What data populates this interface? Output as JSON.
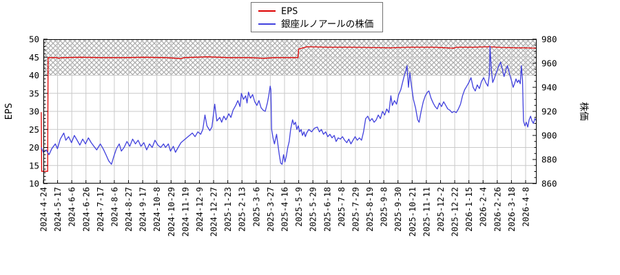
{
  "legend": {
    "items": [
      {
        "label": "EPS",
        "color": "#dd0000"
      },
      {
        "label": "銀座ルノアールの株価",
        "color": "#4040dd"
      }
    ]
  },
  "colors": {
    "grid": "#c9c9c9",
    "hatch": "#ababab",
    "border": "#000000",
    "background": "#ffffff",
    "eps_line": "#dd0000",
    "price_line": "#4040dd"
  },
  "chart_data": {
    "type": "line",
    "title": "",
    "x_unit": "date tick index (1 step = 3 weeks of trading days)",
    "x_tick_labels": [
      "2024-4-24",
      "2024-5-17",
      "2024-6-6",
      "2024-6-26",
      "2024-7-17",
      "2024-8-6",
      "2024-8-27",
      "2024-9-17",
      "2024-10-8",
      "2024-10-29",
      "2024-11-19",
      "2024-12-9",
      "2024-12-27",
      "2025-1-23",
      "2025-2-13",
      "2025-3-6",
      "2025-3-27",
      "2025-4-16",
      "2025-5-9",
      "2025-5-29",
      "2025-6-18",
      "2025-7-8",
      "2025-7-29",
      "2025-8-19",
      "2025-9-8",
      "2025-9-30",
      "2025-10-21",
      "2025-11-11",
      "2025-12-2",
      "2025-12-22",
      "2026-1-15",
      "2026-2-4",
      "2026-2-26",
      "2026-3-18",
      "2026-4-8"
    ],
    "x_range": [
      -0.15,
      34.77
    ],
    "grid": true,
    "shaded_band": {
      "axis": "left",
      "from": 40,
      "to": 50,
      "style": "crosshatch"
    },
    "axes": {
      "left": {
        "title": "EPS",
        "min": 10,
        "max": 50,
        "major_step": 5,
        "minor_step": 1
      },
      "right": {
        "title": "株価",
        "min": 860,
        "max": 980,
        "major_step": 20,
        "minor_step": 5
      }
    },
    "series": [
      {
        "name": "EPS",
        "axis": "left",
        "color": "#dd0000",
        "points": [
          [
            -0.15,
            29.8
          ],
          [
            -0.12,
            13.4
          ],
          [
            0.3,
            13.4
          ],
          [
            0.33,
            44.9
          ],
          [
            0.94,
            44.9
          ],
          [
            1.09,
            44.7
          ],
          [
            1.29,
            44.9
          ],
          [
            2.67,
            45.0
          ],
          [
            4.16,
            44.9
          ],
          [
            5.64,
            44.9
          ],
          [
            7.13,
            45.0
          ],
          [
            8.61,
            44.9
          ],
          [
            9.41,
            44.7
          ],
          [
            9.7,
            44.6
          ],
          [
            9.9,
            44.9
          ],
          [
            11.58,
            45.1
          ],
          [
            13.07,
            44.9
          ],
          [
            14.55,
            44.9
          ],
          [
            15.54,
            44.7
          ],
          [
            16.29,
            44.9
          ],
          [
            17.28,
            44.9
          ],
          [
            17.95,
            44.9
          ],
          [
            18.0,
            47.3
          ],
          [
            18.61,
            47.9
          ],
          [
            20,
            47.8
          ],
          [
            21.49,
            47.8
          ],
          [
            22.97,
            47.7
          ],
          [
            24.46,
            47.6
          ],
          [
            25.94,
            47.8
          ],
          [
            27.43,
            47.8
          ],
          [
            28.91,
            47.5
          ],
          [
            29.16,
            47.8
          ],
          [
            30.4,
            47.8
          ],
          [
            31.39,
            47.9
          ],
          [
            32.38,
            47.7
          ],
          [
            33.37,
            47.6
          ],
          [
            33.96,
            47.6
          ],
          [
            34.77,
            47.5
          ]
        ]
      },
      {
        "name": "銀座ルノアールの株価",
        "axis": "right",
        "color": "#4040dd",
        "points": [
          [
            -0.15,
            890
          ],
          [
            0,
            886
          ],
          [
            0.2,
            888
          ],
          [
            0.4,
            884
          ],
          [
            0.59,
            889
          ],
          [
            0.84,
            893
          ],
          [
            0.99,
            889
          ],
          [
            1.19,
            897
          ],
          [
            1.44,
            902
          ],
          [
            1.58,
            896
          ],
          [
            1.78,
            899
          ],
          [
            1.98,
            894
          ],
          [
            2.18,
            900
          ],
          [
            2.38,
            896
          ],
          [
            2.57,
            892
          ],
          [
            2.77,
            897
          ],
          [
            2.97,
            893
          ],
          [
            3.17,
            898
          ],
          [
            3.37,
            894
          ],
          [
            3.56,
            891
          ],
          [
            3.76,
            888
          ],
          [
            4.01,
            893
          ],
          [
            4.21,
            889
          ],
          [
            4.41,
            884
          ],
          [
            4.6,
            879
          ],
          [
            4.8,
            876
          ],
          [
            4.95,
            882
          ],
          [
            5.15,
            889
          ],
          [
            5.35,
            893
          ],
          [
            5.5,
            887
          ],
          [
            5.69,
            890
          ],
          [
            5.89,
            895
          ],
          [
            6.09,
            891
          ],
          [
            6.29,
            897
          ],
          [
            6.49,
            893
          ],
          [
            6.68,
            896
          ],
          [
            6.88,
            891
          ],
          [
            7.08,
            894
          ],
          [
            7.28,
            888
          ],
          [
            7.48,
            893
          ],
          [
            7.67,
            890
          ],
          [
            7.87,
            896
          ],
          [
            8.07,
            892
          ],
          [
            8.27,
            890
          ],
          [
            8.47,
            893
          ],
          [
            8.61,
            890
          ],
          [
            8.81,
            893
          ],
          [
            8.96,
            887
          ],
          [
            9.16,
            891
          ],
          [
            9.31,
            886
          ],
          [
            9.5,
            890
          ],
          [
            9.7,
            894
          ],
          [
            9.9,
            896
          ],
          [
            10.1,
            898
          ],
          [
            10.3,
            900
          ],
          [
            10.5,
            902
          ],
          [
            10.69,
            899
          ],
          [
            10.89,
            903
          ],
          [
            11.09,
            901
          ],
          [
            11.24,
            905
          ],
          [
            11.39,
            917
          ],
          [
            11.53,
            908
          ],
          [
            11.73,
            904
          ],
          [
            11.88,
            907
          ],
          [
            12.08,
            926
          ],
          [
            12.23,
            912
          ],
          [
            12.43,
            915
          ],
          [
            12.57,
            911
          ],
          [
            12.72,
            916
          ],
          [
            12.87,
            913
          ],
          [
            13.07,
            918
          ],
          [
            13.22,
            915
          ],
          [
            13.37,
            921
          ],
          [
            13.56,
            925
          ],
          [
            13.71,
            929
          ],
          [
            13.86,
            924
          ],
          [
            13.96,
            935
          ],
          [
            14.11,
            930
          ],
          [
            14.26,
            933
          ],
          [
            14.36,
            927
          ],
          [
            14.46,
            936
          ],
          [
            14.6,
            931
          ],
          [
            14.75,
            934
          ],
          [
            14.9,
            928
          ],
          [
            15.05,
            925
          ],
          [
            15.2,
            929
          ],
          [
            15.35,
            923
          ],
          [
            15.5,
            921
          ],
          [
            15.64,
            920
          ],
          [
            15.79,
            927
          ],
          [
            15.89,
            933
          ],
          [
            15.99,
            941
          ],
          [
            16.04,
            938
          ],
          [
            16.09,
            905
          ],
          [
            16.19,
            898
          ],
          [
            16.29,
            893
          ],
          [
            16.44,
            901
          ],
          [
            16.53,
            893
          ],
          [
            16.63,
            884
          ],
          [
            16.73,
            877
          ],
          [
            16.83,
            876
          ],
          [
            16.93,
            884
          ],
          [
            17.03,
            878
          ],
          [
            17.13,
            883
          ],
          [
            17.23,
            890
          ],
          [
            17.33,
            895
          ],
          [
            17.43,
            905
          ],
          [
            17.57,
            913
          ],
          [
            17.67,
            909
          ],
          [
            17.77,
            911
          ],
          [
            17.87,
            905
          ],
          [
            17.97,
            908
          ],
          [
            18.07,
            903
          ],
          [
            18.17,
            905
          ],
          [
            18.27,
            900
          ],
          [
            18.37,
            903
          ],
          [
            18.47,
            899
          ],
          [
            18.56,
            902
          ],
          [
            18.71,
            905
          ],
          [
            18.91,
            903
          ],
          [
            19.11,
            906
          ],
          [
            19.31,
            907
          ],
          [
            19.46,
            903
          ],
          [
            19.6,
            905
          ],
          [
            19.75,
            901
          ],
          [
            19.9,
            903
          ],
          [
            20.05,
            899
          ],
          [
            20.2,
            901
          ],
          [
            20.35,
            898
          ],
          [
            20.5,
            900
          ],
          [
            20.64,
            895
          ],
          [
            20.79,
            898
          ],
          [
            20.94,
            897
          ],
          [
            21.09,
            899
          ],
          [
            21.24,
            896
          ],
          [
            21.39,
            894
          ],
          [
            21.53,
            897
          ],
          [
            21.68,
            893
          ],
          [
            21.83,
            896
          ],
          [
            21.98,
            899
          ],
          [
            22.13,
            896
          ],
          [
            22.28,
            898
          ],
          [
            22.43,
            896
          ],
          [
            22.57,
            903
          ],
          [
            22.72,
            914
          ],
          [
            22.87,
            916
          ],
          [
            23.02,
            912
          ],
          [
            23.17,
            914
          ],
          [
            23.32,
            911
          ],
          [
            23.47,
            913
          ],
          [
            23.61,
            917
          ],
          [
            23.76,
            914
          ],
          [
            23.91,
            920
          ],
          [
            24.06,
            917
          ],
          [
            24.21,
            922
          ],
          [
            24.36,
            919
          ],
          [
            24.5,
            933
          ],
          [
            24.6,
            925
          ],
          [
            24.75,
            929
          ],
          [
            24.9,
            926
          ],
          [
            25.05,
            934
          ],
          [
            25.2,
            938
          ],
          [
            25.3,
            943
          ],
          [
            25.45,
            950
          ],
          [
            25.54,
            953
          ],
          [
            25.64,
            958
          ],
          [
            25.74,
            940
          ],
          [
            25.84,
            952
          ],
          [
            25.94,
            942
          ],
          [
            26.09,
            930
          ],
          [
            26.24,
            923
          ],
          [
            26.39,
            913
          ],
          [
            26.49,
            911
          ],
          [
            26.63,
            920
          ],
          [
            26.78,
            928
          ],
          [
            26.93,
            933
          ],
          [
            27.08,
            936
          ],
          [
            27.18,
            937
          ],
          [
            27.33,
            931
          ],
          [
            27.48,
            927
          ],
          [
            27.62,
            924
          ],
          [
            27.77,
            922
          ],
          [
            27.92,
            927
          ],
          [
            28.07,
            924
          ],
          [
            28.22,
            928
          ],
          [
            28.37,
            925
          ],
          [
            28.51,
            922
          ],
          [
            28.66,
            921
          ],
          [
            28.81,
            919
          ],
          [
            28.96,
            920
          ],
          [
            29.11,
            919
          ],
          [
            29.26,
            922
          ],
          [
            29.41,
            926
          ],
          [
            29.55,
            933
          ],
          [
            29.7,
            938
          ],
          [
            29.85,
            941
          ],
          [
            30,
            944
          ],
          [
            30.15,
            948
          ],
          [
            30.3,
            940
          ],
          [
            30.45,
            937
          ],
          [
            30.59,
            942
          ],
          [
            30.74,
            939
          ],
          [
            30.89,
            945
          ],
          [
            31.04,
            948
          ],
          [
            31.19,
            944
          ],
          [
            31.34,
            941
          ],
          [
            31.44,
            950
          ],
          [
            31.49,
            974
          ],
          [
            31.58,
            955
          ],
          [
            31.68,
            944
          ],
          [
            31.78,
            947
          ],
          [
            31.93,
            952
          ],
          [
            32.08,
            957
          ],
          [
            32.23,
            961
          ],
          [
            32.38,
            954
          ],
          [
            32.48,
            949
          ],
          [
            32.62,
            955
          ],
          [
            32.72,
            958
          ],
          [
            32.87,
            951
          ],
          [
            33.02,
            945
          ],
          [
            33.12,
            940
          ],
          [
            33.22,
            943
          ],
          [
            33.32,
            947
          ],
          [
            33.42,
            944
          ],
          [
            33.52,
            946
          ],
          [
            33.62,
            943
          ],
          [
            33.7,
            958
          ],
          [
            33.78,
            946
          ],
          [
            33.85,
            912
          ],
          [
            33.95,
            908
          ],
          [
            34.05,
            911
          ],
          [
            34.15,
            907
          ],
          [
            34.25,
            913
          ],
          [
            34.35,
            916
          ],
          [
            34.45,
            912
          ],
          [
            34.55,
            910
          ],
          [
            34.65,
            914
          ],
          [
            34.77,
            912
          ]
        ]
      }
    ],
    "legend_position": "top-center"
  }
}
